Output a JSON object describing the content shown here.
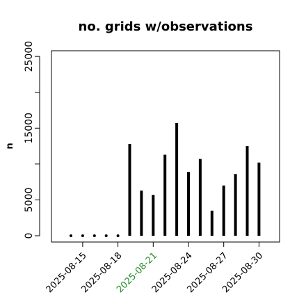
{
  "chart_data": {
    "type": "bar",
    "title": "no. grids w/observations",
    "ylabel": "n",
    "xlabel": "",
    "ylim": [
      0,
      26000
    ],
    "yticks": [
      0,
      5000,
      10000,
      15000,
      20000,
      25000
    ],
    "ytick_labels": [
      "0",
      "5000",
      "",
      "15000",
      "",
      "25000"
    ],
    "x": [
      "2025-08-14",
      "2025-08-15",
      "2025-08-16",
      "2025-08-17",
      "2025-08-18",
      "2025-08-19",
      "2025-08-20",
      "2025-08-21",
      "2025-08-22",
      "2025-08-23",
      "2025-08-24",
      "2025-08-25",
      "2025-08-26",
      "2025-08-27",
      "2025-08-28",
      "2025-08-29",
      "2025-08-30"
    ],
    "values": [
      0,
      0,
      0,
      0,
      0,
      12800,
      6300,
      5700,
      11300,
      15700,
      8900,
      10700,
      3500,
      7000,
      8600,
      12500,
      10200
    ],
    "xticks": [
      "2025-08-15",
      "2025-08-18",
      "2025-08-21",
      "2025-08-24",
      "2025-08-27",
      "2025-08-30"
    ],
    "xtick_colors": [
      "#000000",
      "#000000",
      "#228B22",
      "#000000",
      "#000000",
      "#000000"
    ],
    "highlight_color": "#228B22",
    "bar_color": "#000000"
  }
}
